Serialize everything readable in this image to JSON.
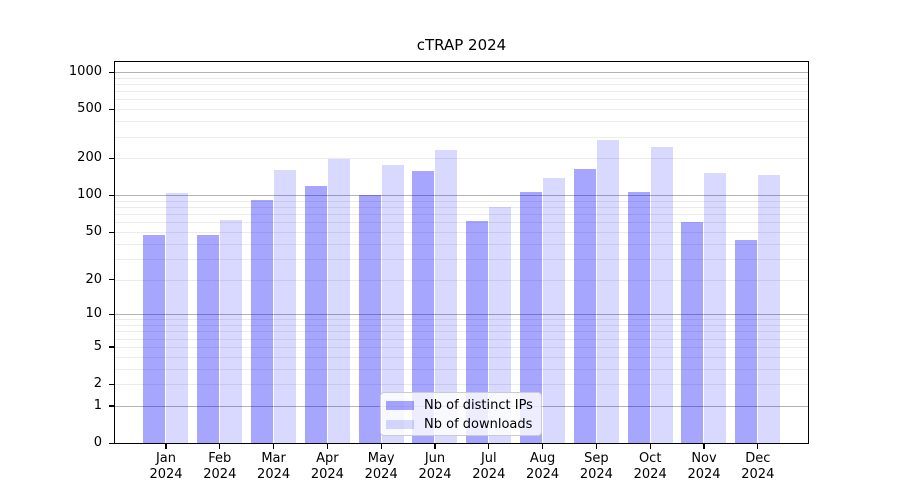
{
  "chart_data": {
    "type": "bar",
    "title": "cTRAP 2024",
    "categories": [
      "Jan",
      "Feb",
      "Mar",
      "Apr",
      "May",
      "Jun",
      "Jul",
      "Aug",
      "Sep",
      "Oct",
      "Nov",
      "Dec"
    ],
    "x_tick_line2": "2024",
    "series": [
      {
        "name": "Nb of distinct IPs",
        "color": "rgba(0,0,255,0.35)",
        "values": [
          47,
          47,
          92,
          118,
          100,
          157,
          61,
          107,
          164,
          106,
          60,
          43
        ]
      },
      {
        "name": "Nb of downloads",
        "color": "rgba(0,0,255,0.15)",
        "values": [
          105,
          63,
          160,
          199,
          175,
          232,
          80,
          137,
          284,
          247,
          152,
          147
        ]
      }
    ],
    "yscale": "log1p",
    "ylim": [
      0,
      1206
    ],
    "yticks": [
      0,
      1,
      2,
      5,
      10,
      20,
      50,
      100,
      200,
      500,
      1000
    ],
    "grid": {
      "major_ticks": [
        1,
        10,
        100,
        1000
      ],
      "minor_multiples": [
        2,
        3,
        4,
        5,
        6,
        7,
        8,
        9
      ],
      "minor_decades": [
        1,
        10,
        100
      ],
      "major_color": "#b3b3b3",
      "minor_color": "#ebebeb"
    },
    "legend": {
      "location": "inside-bottom-center"
    }
  }
}
